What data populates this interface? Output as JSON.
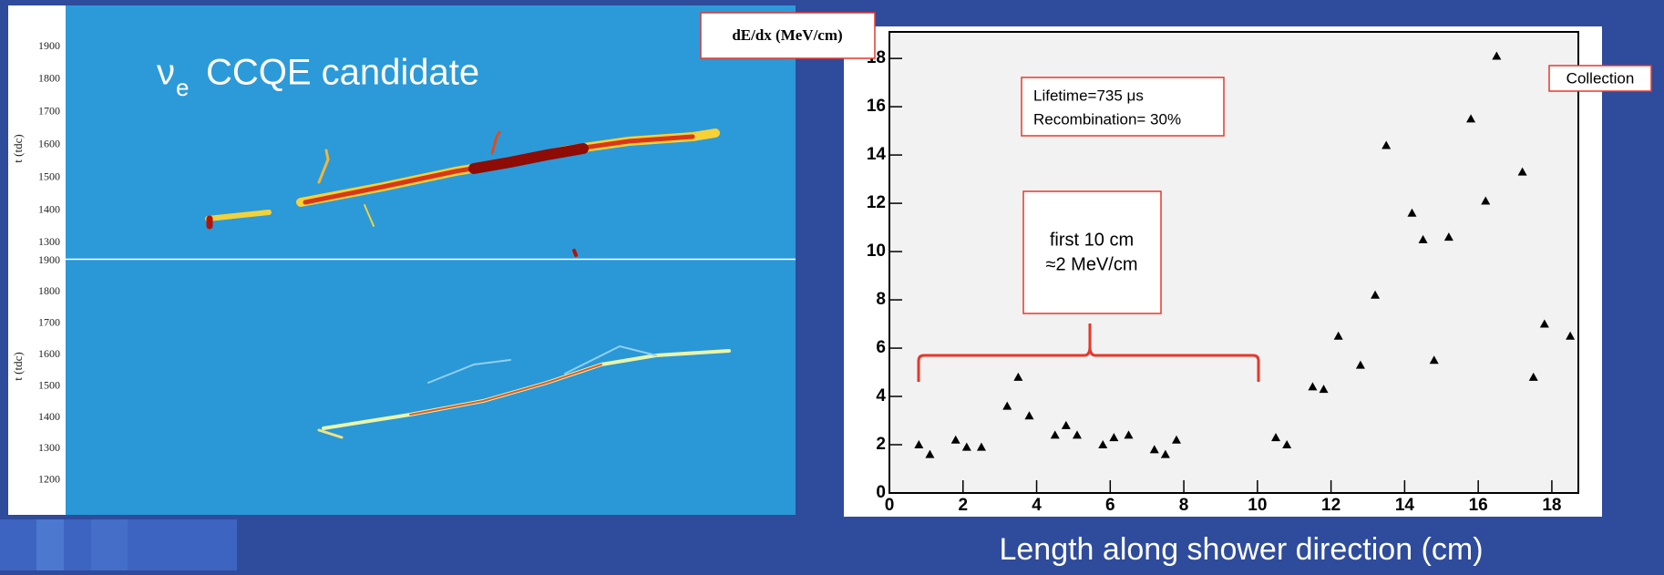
{
  "event_display": {
    "particle": "ν",
    "subscript": "e",
    "label": "CCQE candidate",
    "axis_label": "t (tdc)",
    "top_ticks": [
      1900,
      1800,
      1700,
      1600,
      1500,
      1400,
      1300
    ],
    "bottom_ticks": [
      1900,
      1800,
      1700,
      1600,
      1500,
      1400,
      1300,
      1200
    ]
  },
  "chart_data": {
    "type": "scatter",
    "ylabel": "dE/dx (MeV/cm)",
    "xlabel": "Length along shower direction (cm)",
    "annotations": {
      "params": [
        "Lifetime=735 μs",
        "Recombination= 30%"
      ],
      "plane": "Collection",
      "note": [
        "first 10 cm",
        "≈2 MeV/cm"
      ]
    },
    "x": [
      0.8,
      1.1,
      1.8,
      2.1,
      2.5,
      3.2,
      3.5,
      3.8,
      4.5,
      4.8,
      5.1,
      5.8,
      6.1,
      6.5,
      7.2,
      7.5,
      7.8,
      10.5,
      10.8,
      11.5,
      11.8,
      12.2,
      12.8,
      13.2,
      13.5,
      14.2,
      14.5,
      14.8,
      15.2,
      15.8,
      16.2,
      16.5,
      17.2,
      17.5,
      17.8,
      18.5
    ],
    "values": [
      2.0,
      1.6,
      2.2,
      1.9,
      1.9,
      3.6,
      4.8,
      3.2,
      2.4,
      2.8,
      2.4,
      2.0,
      2.3,
      2.4,
      1.8,
      1.6,
      2.2,
      2.3,
      2.0,
      4.4,
      4.3,
      6.5,
      5.3,
      8.2,
      14.4,
      11.6,
      10.5,
      5.5,
      10.6,
      15.5,
      12.1,
      18.1,
      13.3,
      4.8,
      7.0,
      6.5
    ],
    "color": "#000000",
    "xlim": [
      0,
      18.72
    ],
    "ylim": [
      0,
      19.1
    ],
    "xticks": [
      0,
      2,
      4,
      6,
      8,
      10,
      12,
      14,
      16,
      18
    ],
    "yticks": [
      0,
      2,
      4,
      6,
      8,
      10,
      12,
      14,
      16,
      18
    ]
  }
}
